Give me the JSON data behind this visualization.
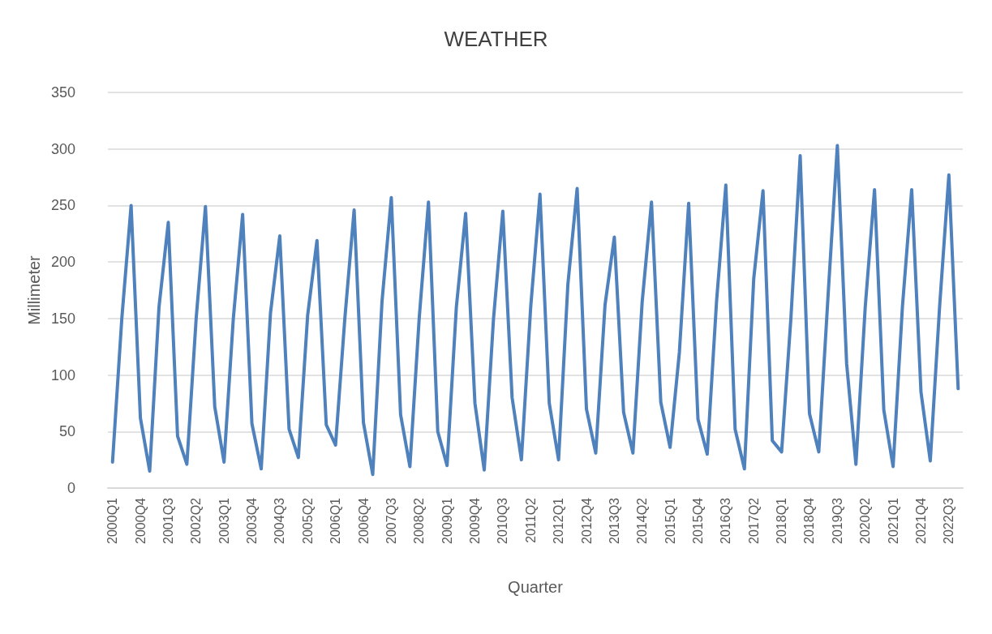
{
  "chart_data": {
    "type": "line",
    "title": "WEATHER",
    "xlabel": "Quarter",
    "ylabel": "Millimeter",
    "categories": [
      "2000Q1",
      null,
      null,
      "2000Q4",
      null,
      null,
      "2001Q3",
      null,
      null,
      "2002Q2",
      null,
      null,
      "2003Q1",
      null,
      null,
      "2003Q4",
      null,
      null,
      "2004Q3",
      null,
      null,
      "2005Q2",
      null,
      null,
      "2006Q1",
      null,
      null,
      "2006Q4",
      null,
      null,
      "2007Q3",
      null,
      null,
      "2008Q2",
      null,
      null,
      "2009Q1",
      null,
      null,
      "2009Q4",
      null,
      null,
      "2010Q3",
      null,
      null,
      "2011Q2",
      null,
      null,
      "2012Q1",
      null,
      null,
      "2012Q4",
      null,
      null,
      "2013Q3",
      null,
      null,
      "2014Q2",
      null,
      null,
      "2015Q1",
      null,
      null,
      "2015Q4",
      null,
      null,
      "2016Q3",
      null,
      null,
      "2017Q2",
      null,
      null,
      "2018Q1",
      null,
      null,
      "2018Q4",
      null,
      null,
      "2019Q3",
      null,
      null,
      "2020Q2",
      null,
      null,
      "2021Q1",
      null,
      null,
      "2021Q4",
      null,
      null,
      "2022Q3",
      null
    ],
    "series": [
      {
        "color": "#4f81bd",
        "values": [
          23,
          150,
          250,
          62,
          15,
          160,
          235,
          46,
          21,
          150,
          249,
          72,
          23,
          150,
          242,
          57,
          17,
          155,
          223,
          52,
          27,
          153,
          219,
          56,
          38,
          150,
          246,
          58,
          12,
          165,
          257,
          65,
          19,
          150,
          253,
          50,
          20,
          160,
          243,
          75,
          16,
          150,
          245,
          80,
          25,
          160,
          260,
          75,
          25,
          180,
          265,
          70,
          31,
          162,
          222,
          67,
          31,
          165,
          253,
          76,
          36,
          120,
          252,
          61,
          30,
          165,
          268,
          52,
          17,
          185,
          263,
          42,
          32,
          150,
          294,
          66,
          32,
          170,
          303,
          110,
          21,
          160,
          264,
          69,
          19,
          160,
          264,
          85,
          24,
          160,
          277,
          88
        ]
      }
    ],
    "ylim": [
      0,
      350
    ],
    "yticks": [
      0,
      50,
      100,
      150,
      200,
      250,
      300,
      350
    ],
    "grid": "y",
    "marker": "none",
    "line_style": "solid"
  }
}
